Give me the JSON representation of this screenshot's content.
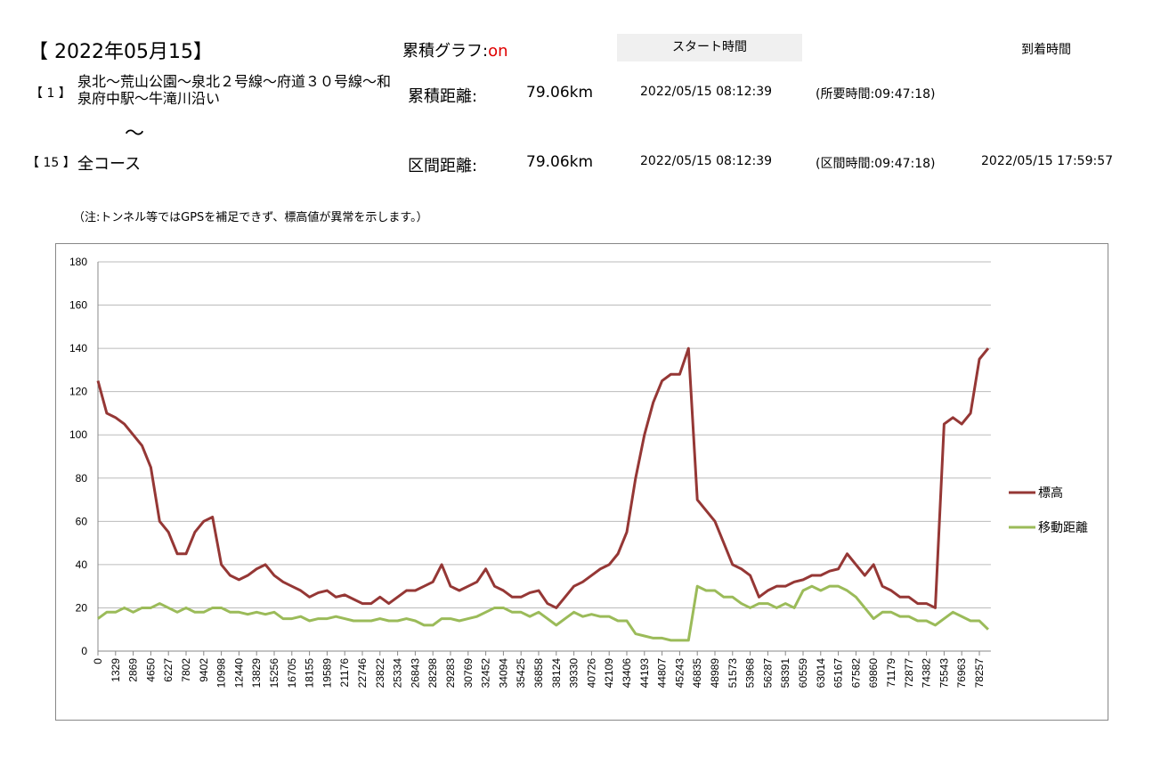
{
  "header": {
    "date_title": "【 2022年05月15】",
    "graph_label": "累積グラフ:",
    "graph_state": "on",
    "start_header": "スタート時間",
    "arrival_header": "到着時間",
    "from_no": "【 1 】",
    "from_course": "泉北～荒山公園～泉北２号線～府道３０号線～和泉府中駅～牛滝川沿い",
    "tilde": "～",
    "to_no": "【 15 】",
    "to_course": "全コース",
    "total_label": "累積距離:",
    "total_distance": "79.06km",
    "total_start": "2022/05/15 08:12:39",
    "total_duration": "(所要時間:09:47:18)",
    "section_label": "区間距離:",
    "section_distance": "79.06km",
    "section_start": "2022/05/15 08:12:39",
    "section_duration": "(区間時間:09:47:18)",
    "section_arrival": "2022/05/15 17:59:57",
    "note": "（注:トンネル等ではGPSを補足できず、標高値が異常を示します。）"
  },
  "chart_data": {
    "type": "line",
    "categories": [
      "0",
      null,
      "1329",
      null,
      "2869",
      null,
      "4650",
      null,
      "6227",
      null,
      "7802",
      null,
      "9402",
      null,
      "10998",
      null,
      "12440",
      null,
      "13829",
      null,
      "15256",
      null,
      "16705",
      null,
      "18155",
      null,
      "19589",
      null,
      "21176",
      null,
      "22746",
      null,
      "23822",
      null,
      "25334",
      null,
      "26843",
      null,
      "28298",
      null,
      "29283",
      null,
      "30769",
      null,
      "32452",
      null,
      "34094",
      null,
      "35425",
      null,
      "36858",
      null,
      "38124",
      null,
      "39330",
      null,
      "40726",
      null,
      "42109",
      null,
      "43406",
      null,
      "44193",
      null,
      "44807",
      null,
      "45243",
      null,
      "46835",
      null,
      "48989",
      null,
      "51573",
      null,
      "53968",
      null,
      "56287",
      null,
      "58391",
      null,
      "60559",
      null,
      "63014",
      null,
      "65167",
      null,
      "67582",
      null,
      "69860",
      null,
      "71179",
      null,
      "72877",
      null,
      "74382",
      null,
      "75543",
      null,
      "76963",
      null,
      "78257",
      null
    ],
    "series": [
      {
        "name": "標高",
        "color": "#953735",
        "values": [
          125,
          110,
          108,
          105,
          100,
          95,
          85,
          60,
          55,
          45,
          45,
          55,
          60,
          62,
          40,
          35,
          33,
          35,
          38,
          40,
          35,
          32,
          30,
          28,
          25,
          27,
          28,
          25,
          26,
          24,
          22,
          22,
          25,
          22,
          25,
          28,
          28,
          30,
          32,
          40,
          30,
          28,
          30,
          32,
          38,
          30,
          28,
          25,
          25,
          27,
          28,
          22,
          20,
          25,
          30,
          32,
          35,
          38,
          40,
          45,
          55,
          80,
          100,
          115,
          125,
          128,
          128,
          140,
          70,
          65,
          60,
          50,
          40,
          38,
          35,
          25,
          28,
          30,
          30,
          32,
          33,
          35,
          35,
          37,
          38,
          45,
          40,
          35,
          40,
          30,
          28,
          25,
          25,
          22,
          22,
          20,
          105,
          108,
          105,
          110,
          135,
          140
        ]
      },
      {
        "name": "移動距離",
        "color": "#9bbb59",
        "values": [
          15,
          18,
          18,
          20,
          18,
          20,
          20,
          22,
          20,
          18,
          20,
          18,
          18,
          20,
          20,
          18,
          18,
          17,
          18,
          17,
          18,
          15,
          15,
          16,
          14,
          15,
          15,
          16,
          15,
          14,
          14,
          14,
          15,
          14,
          14,
          15,
          14,
          12,
          12,
          15,
          15,
          14,
          15,
          16,
          18,
          20,
          20,
          18,
          18,
          16,
          18,
          15,
          12,
          15,
          18,
          16,
          17,
          16,
          16,
          14,
          14,
          8,
          7,
          6,
          6,
          5,
          5,
          5,
          30,
          28,
          28,
          25,
          25,
          22,
          20,
          22,
          22,
          20,
          22,
          20,
          28,
          30,
          28,
          30,
          30,
          28,
          25,
          20,
          15,
          18,
          18,
          16,
          16,
          14,
          14,
          12,
          15,
          18,
          16,
          14,
          14,
          10
        ]
      }
    ],
    "ylim": [
      0,
      180
    ],
    "yticks": [
      0,
      20,
      40,
      60,
      80,
      100,
      120,
      140,
      160,
      180
    ],
    "grid": true,
    "legend": "right"
  }
}
